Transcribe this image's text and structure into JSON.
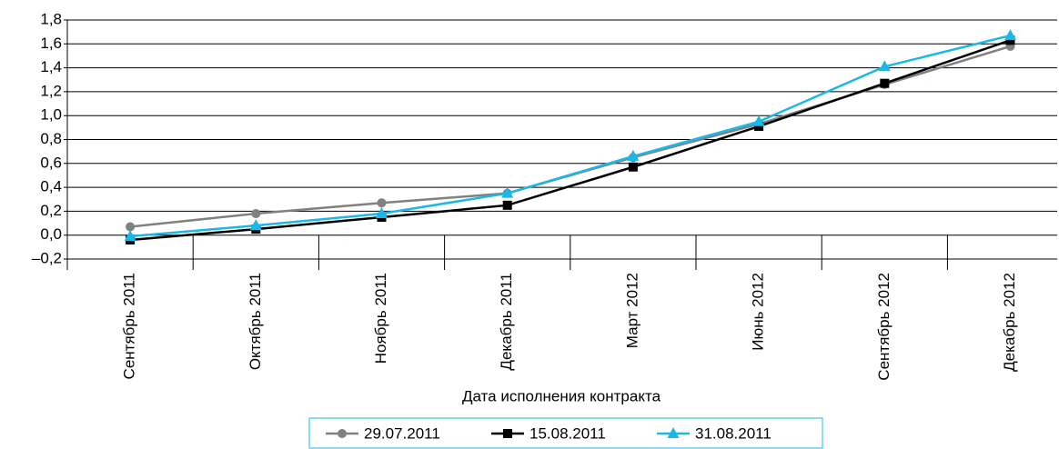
{
  "chart_data": {
    "type": "line",
    "x_label": "Дата исполнения контракта",
    "categories": [
      "Сентябрь 2011",
      "Октябрь 2011",
      "Ноябрь 2011",
      "Декабрь 2011",
      "Март 2012",
      "Июнь 2012",
      "Сентябрь 2012",
      "Декабрь 2012"
    ],
    "series": [
      {
        "name": "29.07.2011",
        "color": "#808080",
        "marker": "circle",
        "values": [
          0.07,
          0.18,
          0.27,
          0.35,
          0.65,
          0.93,
          1.26,
          1.58
        ]
      },
      {
        "name": "15.08.2011",
        "color": "#000000",
        "marker": "square",
        "values": [
          -0.04,
          0.05,
          0.15,
          0.25,
          0.57,
          0.91,
          1.27,
          1.63
        ]
      },
      {
        "name": "31.08.2011",
        "color": "#1ab8e8",
        "marker": "triangle",
        "values": [
          -0.01,
          0.08,
          0.18,
          0.35,
          0.66,
          0.95,
          1.41,
          1.67
        ]
      }
    ],
    "ylim": [
      -0.2,
      1.8
    ],
    "yticks": [
      {
        "value": -0.2,
        "label": "–0,2"
      },
      {
        "value": 0,
        "label": "0,0"
      },
      {
        "value": 0.2,
        "label": "0,2"
      },
      {
        "value": 0.4,
        "label": "0,4"
      },
      {
        "value": 0.6,
        "label": "0,6"
      },
      {
        "value": 0.8,
        "label": "0,8"
      },
      {
        "value": 1.0,
        "label": "1,0"
      },
      {
        "value": 1.2,
        "label": "1,2"
      },
      {
        "value": 1.4,
        "label": "1,4"
      },
      {
        "value": 1.6,
        "label": "1,6"
      },
      {
        "value": 1.8,
        "label": "1,8"
      }
    ],
    "grid": true,
    "legend": "bottom"
  }
}
